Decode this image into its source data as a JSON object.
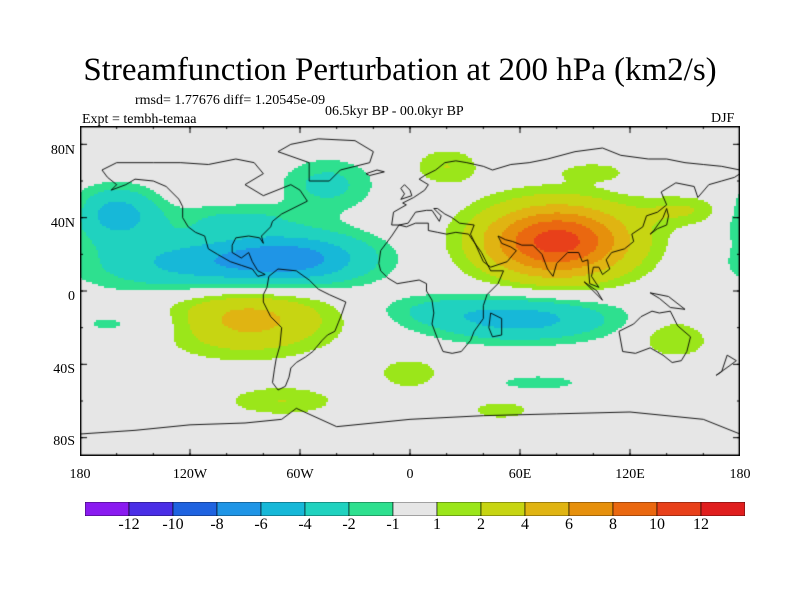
{
  "title": "Streamfunction Perturbation at 200 hPa (km2/s)",
  "stats": "rmsd= 1.77676 diff= 1.20545e-09",
  "experiment": "Expt = tembh-temaa",
  "period": "06.5kyr BP - 00.0kyr BP",
  "season": "DJF",
  "lat_ticks": [
    "80N",
    "40N",
    "0",
    "40S",
    "80S"
  ],
  "lon_ticks": [
    "180",
    "120W",
    "60W",
    "0",
    "60E",
    "120E",
    "180"
  ],
  "colorbar": {
    "labels": [
      "-12",
      "-10",
      "-8",
      "-6",
      "-4",
      "-2",
      "-1",
      "1",
      "2",
      "4",
      "6",
      "8",
      "10",
      "12"
    ],
    "colors": [
      "#8a1bf0",
      "#4a2ee6",
      "#1f63e0",
      "#1f95e6",
      "#17b8d8",
      "#20d2bf",
      "#2ee08f",
      "#e6e6e6",
      "#9be61a",
      "#c7d512",
      "#e0b412",
      "#e6900c",
      "#ea6810",
      "#e8401a",
      "#e01e1e"
    ]
  },
  "map_fields": {
    "contour_levels": [
      -12,
      -10,
      -8,
      -6,
      -4,
      -2,
      -1,
      1,
      2,
      4,
      6,
      8,
      10,
      12
    ],
    "anomalies": [
      {
        "name": "west-pacific-hemispheric-band",
        "lon": -110,
        "lat": 15,
        "rx": 60,
        "ry": 16,
        "amp": -5
      },
      {
        "name": "north-pacific-trough",
        "lon": -160,
        "lat": 42,
        "rx": 22,
        "ry": 14,
        "amp": -5
      },
      {
        "name": "caribbean-low",
        "lon": -60,
        "lat": 18,
        "rx": 40,
        "ry": 14,
        "amp": -5
      },
      {
        "name": "north-atlantic-low",
        "lon": -45,
        "lat": 58,
        "rx": 25,
        "ry": 14,
        "amp": -2.5
      },
      {
        "name": "north-america-band",
        "lon": -95,
        "lat": 40,
        "rx": 35,
        "ry": 8,
        "amp": -1.8
      },
      {
        "name": "tropical-indian-ocean-low",
        "lon": 60,
        "lat": -15,
        "rx": 50,
        "ry": 12,
        "amp": -5
      },
      {
        "name": "southwest-pacific-band",
        "lon": -150,
        "lat": -18,
        "rx": 45,
        "ry": 10,
        "amp": -1.5
      },
      {
        "name": "south-atlantic-band",
        "lon": 10,
        "lat": -10,
        "rx": 30,
        "ry": 8,
        "amp": -1.2
      },
      {
        "name": "southern-indian-band",
        "lon": 70,
        "lat": -50,
        "rx": 35,
        "ry": 6,
        "amp": -1.3
      },
      {
        "name": "south-america-high",
        "lon": -90,
        "lat": -15,
        "rx": 45,
        "ry": 18,
        "amp": 5
      },
      {
        "name": "asian-high",
        "lon": 80,
        "lat": 27,
        "rx": 40,
        "ry": 20,
        "amp": 11
      },
      {
        "name": "arctic-atlantic-high",
        "lon": 20,
        "lat": 68,
        "rx": 18,
        "ry": 10,
        "amp": 2
      },
      {
        "name": "north-pacific-ridge",
        "lon": 150,
        "lat": 44,
        "rx": 25,
        "ry": 8,
        "amp": 2
      },
      {
        "name": "siberia-ridge",
        "lon": 100,
        "lat": 65,
        "rx": 18,
        "ry": 5,
        "amp": 1.6
      },
      {
        "name": "australia-high",
        "lon": 145,
        "lat": -25,
        "rx": 22,
        "ry": 12,
        "amp": 2
      },
      {
        "name": "southeast-pacific-high",
        "lon": -70,
        "lat": -60,
        "rx": 30,
        "ry": 8,
        "amp": 2
      },
      {
        "name": "south-atlantic-high",
        "lon": 0,
        "lat": -45,
        "rx": 20,
        "ry": 10,
        "amp": 1.6
      },
      {
        "name": "southwest-indian-high",
        "lon": 50,
        "lat": -65,
        "rx": 20,
        "ry": 6,
        "amp": 1.5
      }
    ]
  }
}
